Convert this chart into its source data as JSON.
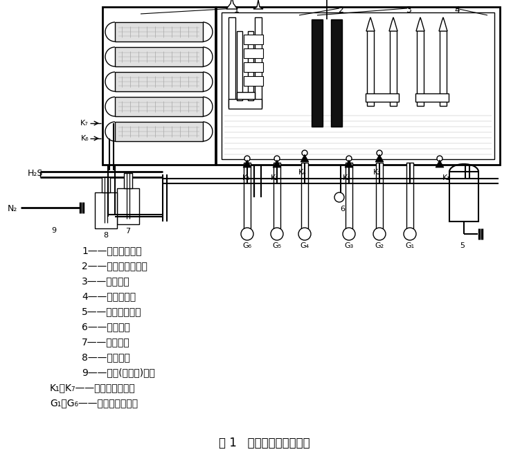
{
  "title": "图 1   饱和硫容量测定装置",
  "legend_lines": [
    "1——湿度调节器；",
    "2——干湿球湿度计；",
    "3——测定管；",
    "4——恒温水浴；",
    "5——空气净化罐；",
    "6——混合器；",
    "7——氨水瓶；",
    "8——洗气瓶；",
    "9——氨气(或煤气)阀；",
    "K₁～K₇——两通玻璃活塞；",
    "G₁～G₆——毛细管流量计。"
  ],
  "figw": 7.64,
  "figh": 6.66,
  "dpi": 100
}
